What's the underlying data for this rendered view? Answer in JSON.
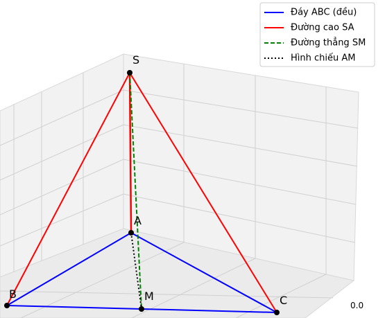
{
  "legend": [
    {
      "label": "Đáy ABC (đều)",
      "color": "#0000ff"
    },
    {
      "label": "Đường cao SA",
      "color": "#ff0000"
    },
    {
      "label": "Đường thẳng SM",
      "color": "#008000"
    },
    {
      "label": "Hình chiếu AM",
      "color": "#000000"
    }
  ],
  "points": [
    "S",
    "A",
    "B",
    "C",
    "M"
  ],
  "axis_tick": "0.0"
}
